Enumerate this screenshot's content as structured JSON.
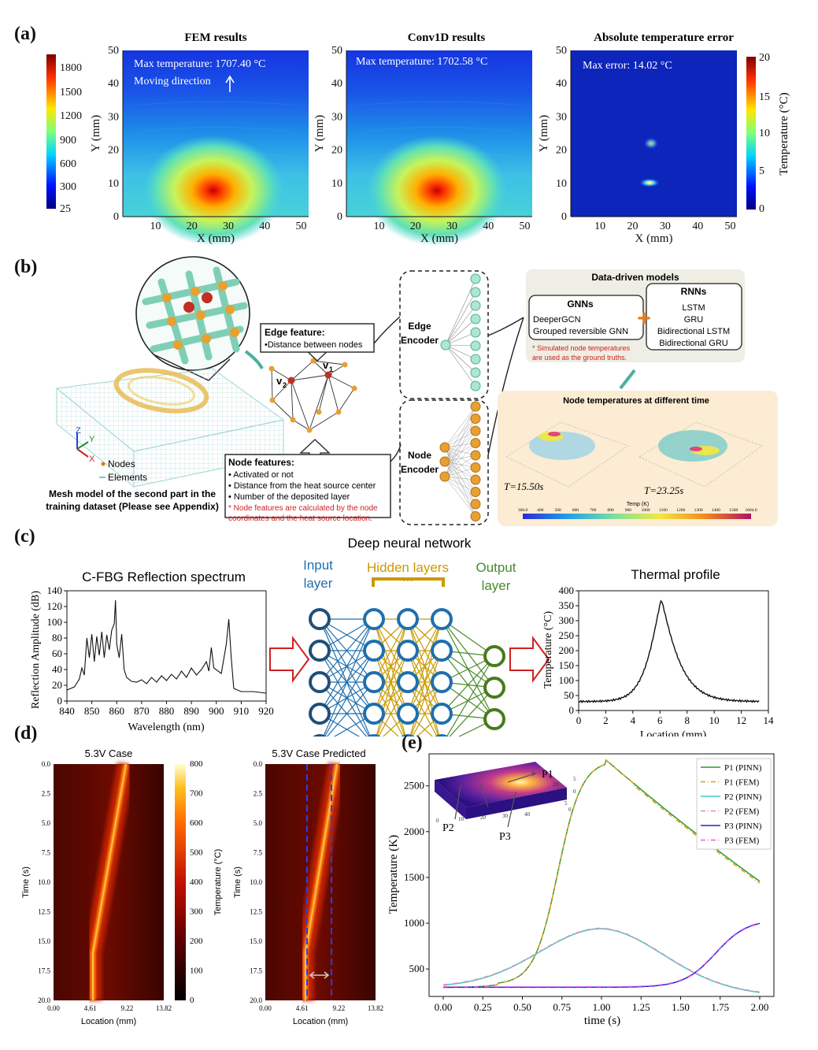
{
  "labels": {
    "a": "(a)",
    "b": "(b)",
    "c": "(c)",
    "d": "(d)",
    "e": "(e)"
  },
  "colors": {
    "cold": "#1a35c8",
    "hot": "#e02a10",
    "accent": "#e07b18",
    "diagram_green": "#7fcfb7"
  },
  "panel_a": {
    "colorbar_left": {
      "ticks": [
        "1800",
        "1500",
        "1200",
        "900",
        "600",
        "300",
        "25"
      ]
    },
    "colorbar_right": {
      "ticks": [
        "20",
        "15",
        "10",
        "5",
        "0"
      ],
      "label": "Temperature (°C)"
    },
    "plots": [
      {
        "title": "FEM results",
        "note1": "Max temperature: 1707.40 °C",
        "note2": "Moving direction"
      },
      {
        "title": "Conv1D results",
        "note1": "Max temperature: 1702.58 °C",
        "note2": ""
      },
      {
        "title": "Absolute temperature error",
        "note1": "Max error: 14.02 °C",
        "note2": ""
      }
    ],
    "xlabel": "X (mm)",
    "ylabel": "Y (mm)",
    "xticks": [
      "10",
      "20",
      "30",
      "40",
      "50"
    ],
    "yticks": [
      "50",
      "40",
      "30",
      "20",
      "10",
      "0"
    ]
  },
  "panel_b": {
    "mesh_axes": {
      "z": "Z",
      "y": "Y",
      "x": "X"
    },
    "legend": {
      "nodes": "Nodes",
      "elements": "Elements"
    },
    "mesh_caption_1": "Mesh model of the second part in the",
    "mesh_caption_2": "training dataset (Please see Appendix)",
    "graph_nodes": {
      "v1": "v",
      "v1_sub": "1",
      "v2": "v",
      "v2_sub": "2"
    },
    "edge_title": "Edge feature:",
    "edge_item": "•Distance between nodes",
    "node_title": "Node features:",
    "node_items": [
      "• Activated or not",
      "• Distance from the heat source center",
      "• Number of the deposited layer"
    ],
    "node_note_1": "* Node features are calculated by the node",
    "node_note_2": "coordinates and the heat source location.",
    "edge_encoder_1": "Edge",
    "edge_encoder_2": "Encoder",
    "node_encoder_1": "Node",
    "node_encoder_2": "Encoder",
    "dd_title": "Data-driven models",
    "gnn_title": "GNNs",
    "gnn_items": [
      "DeeperGCN",
      "Grouped reversible GNN"
    ],
    "rnn_title": "RNNs",
    "rnn_items": [
      "LSTM",
      "GRU",
      "Bidirectional LSTM",
      "Bidirectional GRU"
    ],
    "plus": "+",
    "gt_note_1": "* Simulated node temperatures",
    "gt_note_2": "are used as the ground truths.",
    "nt_title": "Node temperatures at different time",
    "t1": "T=15.50s",
    "t2": "T=23.25s",
    "temp_label": "Temp (K)",
    "temp_ticks": [
      "300.0",
      "400",
      "500",
      "600",
      "700",
      "800",
      "900",
      "1000",
      "1100",
      "1200",
      "1300",
      "1400",
      "1500",
      "1604.0"
    ]
  },
  "panel_c": {
    "dnn_title": "Deep neural network",
    "input_layer_1": "Input",
    "input_layer_2": "layer",
    "hidden_layers": "Hidden layers",
    "dots": "···",
    "output_layer_1": "Output",
    "output_layer_2": "layer",
    "spectrum_title": "C-FBG Reflection spectrum",
    "spectrum_ylabel": "Reflection Amplitude (dB)",
    "spectrum_xlabel": "Wavelength (nm)",
    "spectrum_xticks": [
      "840",
      "850",
      "860",
      "870",
      "880",
      "890",
      "900",
      "910",
      "920"
    ],
    "spectrum_yticks": [
      "140",
      "120",
      "100",
      "80",
      "60",
      "40",
      "20",
      "0"
    ],
    "thermal_title": "Thermal profile",
    "thermal_ylabel": "Temperature (°C)",
    "thermal_xlabel": "Location (mm)",
    "thermal_xticks": [
      "0",
      "2",
      "4",
      "6",
      "8",
      "10",
      "12",
      "14"
    ],
    "thermal_yticks": [
      "400",
      "350",
      "300",
      "250",
      "200",
      "150",
      "100",
      "50",
      "0"
    ]
  },
  "panel_d": {
    "titles": [
      "5.3V Case",
      "5.3V Case Predicted"
    ],
    "ylabel": "Time (s)",
    "xlabel": "Location (mm)",
    "yticks": [
      "0.0",
      "2.5",
      "5.0",
      "7.5",
      "10.0",
      "12.5",
      "15.0",
      "17.5",
      "20.0"
    ],
    "xticks": [
      "0.00",
      "4.61",
      "9.22",
      "13.82"
    ],
    "cbar_ticks": [
      "800",
      "700",
      "600",
      "500",
      "400",
      "300",
      "200",
      "100",
      "0"
    ],
    "cbar_label": "Temperature (°C)"
  },
  "panel_e": {
    "ylabel": "Temperature (K)",
    "xlabel": "time (s)",
    "xticks": [
      "0.00",
      "0.25",
      "0.50",
      "0.75",
      "1.00",
      "1.25",
      "1.50",
      "1.75",
      "2.00"
    ],
    "yticks": [
      "2500",
      "2000",
      "1500",
      "1000",
      "500"
    ],
    "legend": [
      "P1 (PINN)",
      "P1 (FEM)",
      "P2 (PINN)",
      "P2 (FEM)",
      "P3 (PINN)",
      "P3 (FEM)"
    ],
    "points": [
      "P1",
      "P2",
      "P3"
    ],
    "inset_ticks_x": [
      "0",
      "10",
      "20",
      "30",
      "40"
    ],
    "inset_ticks_y": [
      "0",
      "5",
      "10",
      "15",
      "20"
    ],
    "inset_ticks_z": [
      "0",
      "5"
    ]
  }
}
